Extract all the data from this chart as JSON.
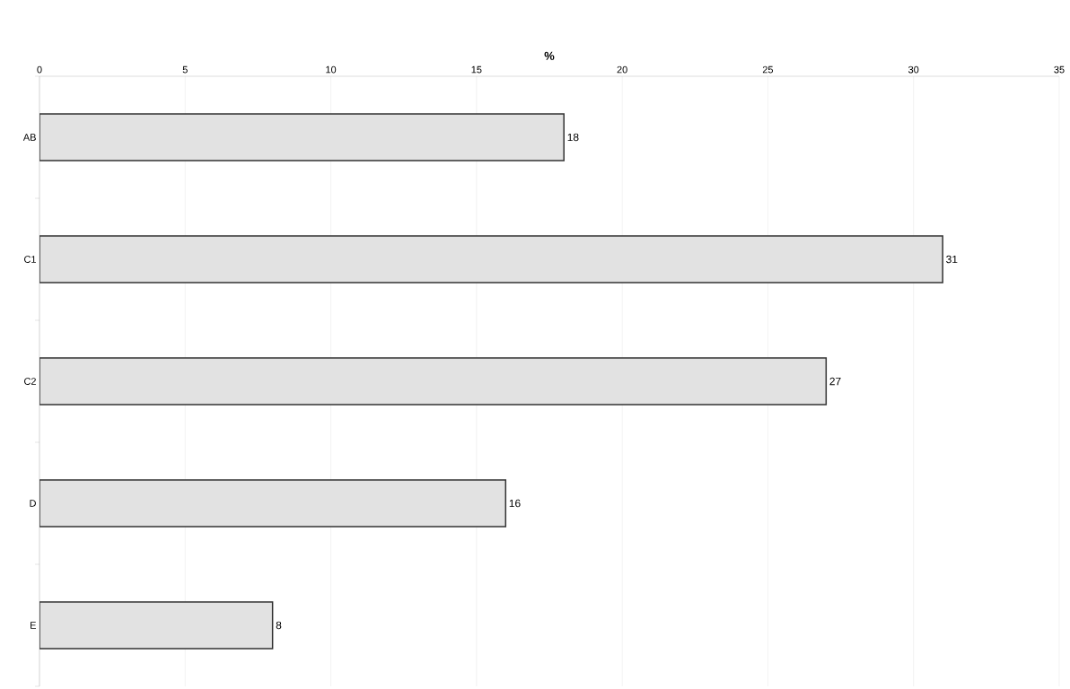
{
  "chart_data": {
    "type": "bar",
    "orientation": "horizontal",
    "xlabel": "%",
    "categories": [
      "AB",
      "C1",
      "C2",
      "D",
      "E"
    ],
    "values": [
      18,
      31,
      27,
      16,
      8
    ],
    "color": "#e2e2e2",
    "xlim": [
      0,
      35
    ],
    "xticks": [
      0,
      5,
      10,
      15,
      20,
      25,
      30,
      35
    ],
    "grid": "x",
    "data_labels": true
  }
}
